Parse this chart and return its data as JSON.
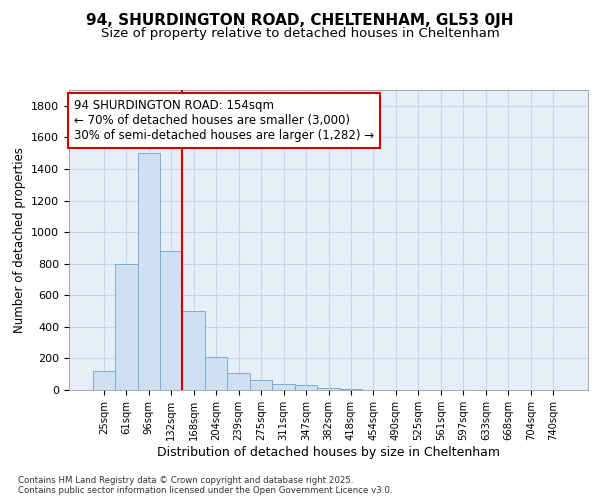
{
  "title_line1": "94, SHURDINGTON ROAD, CHELTENHAM, GL53 0JH",
  "title_line2": "Size of property relative to detached houses in Cheltenham",
  "xlabel": "Distribution of detached houses by size in Cheltenham",
  "ylabel": "Number of detached properties",
  "categories": [
    "25sqm",
    "61sqm",
    "96sqm",
    "132sqm",
    "168sqm",
    "204sqm",
    "239sqm",
    "275sqm",
    "311sqm",
    "347sqm",
    "382sqm",
    "418sqm",
    "454sqm",
    "490sqm",
    "525sqm",
    "561sqm",
    "597sqm",
    "633sqm",
    "668sqm",
    "704sqm",
    "740sqm"
  ],
  "values": [
    120,
    800,
    1500,
    880,
    500,
    210,
    110,
    65,
    40,
    30,
    10,
    5,
    3,
    2,
    2,
    1,
    1,
    1,
    1,
    1,
    1
  ],
  "bar_color": "#cfe0f3",
  "bar_edge_color": "#7aadd4",
  "bar_edge_width": 0.7,
  "vline_x": 3.5,
  "vline_color": "#cc0000",
  "vline_linewidth": 1.5,
  "annotation_text": "94 SHURDINGTON ROAD: 154sqm\n← 70% of detached houses are smaller (3,000)\n30% of semi-detached houses are larger (1,282) →",
  "annotation_box_color": "#cc0000",
  "annotation_fontsize": 8.5,
  "ylim": [
    0,
    1900
  ],
  "yticks": [
    0,
    200,
    400,
    600,
    800,
    1000,
    1200,
    1400,
    1600,
    1800
  ],
  "grid_color": "#c8d4e8",
  "background_color": "#e8eef8",
  "title1_fontsize": 11,
  "title2_fontsize": 9.5,
  "xlabel_fontsize": 9,
  "ylabel_fontsize": 8.5,
  "footer_text": "Contains HM Land Registry data © Crown copyright and database right 2025.\nContains public sector information licensed under the Open Government Licence v3.0."
}
